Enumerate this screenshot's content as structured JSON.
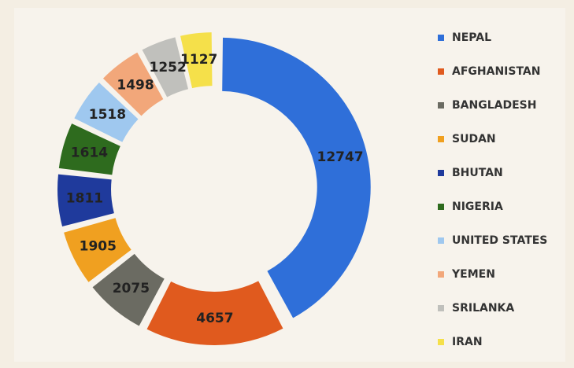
{
  "chart_data": {
    "type": "donut",
    "categories": [
      "NEPAL",
      "AFGHANISTAN",
      "BANGLADESH",
      "SUDAN",
      "BHUTAN",
      "NIGERIA",
      "UNITED STATES",
      "YEMEN",
      "SRILANKA",
      "IRAN"
    ],
    "values": [
      12747,
      4657,
      2075,
      1905,
      1811,
      1614,
      1518,
      1498,
      1252,
      1127
    ],
    "colors": [
      "#2f6fd9",
      "#e05a1e",
      "#6b6b62",
      "#f0a020",
      "#1f3a9c",
      "#2e6b1e",
      "#9fc8ef",
      "#f2a77a",
      "#c0c0bc",
      "#f5e04a"
    ]
  }
}
